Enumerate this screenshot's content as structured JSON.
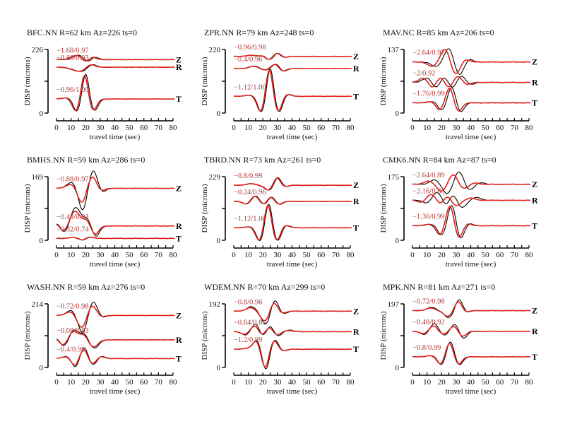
{
  "chart_data": {
    "type": "line",
    "layout": "3x3 grid",
    "series_colors": {
      "data": "#000000",
      "synthetic": "#e0201b"
    },
    "annotation_color": "#b03a3a",
    "common": {
      "xlabel": "travel time (sec)",
      "ylabel": "DISP (microns)",
      "xlim": [
        0,
        80
      ],
      "xticks": [
        0,
        10,
        20,
        30,
        40,
        50,
        60,
        70,
        80
      ],
      "components": [
        "Z",
        "R",
        "T"
      ]
    },
    "panels": [
      {
        "title": "BFC.NN R=62 km Az=226 ts=0",
        "ymax": 226,
        "traces": [
          {
            "comp": "Z",
            "offset": 190,
            "annotation": "−1.68/0.97",
            "wavelets": [
              [
                16,
                18,
                4
              ],
              [
                21,
                -14,
                3
              ],
              [
                26,
                10,
                2.5
              ]
            ],
            "shift": 1.5
          },
          {
            "comp": "R",
            "offset": 163,
            "annotation": "−0.88/0.93",
            "wavelets": [
              [
                17,
                -16,
                5
              ],
              [
                24,
                14,
                3
              ]
            ],
            "shift": 1.0
          },
          {
            "comp": "T",
            "offset": 50,
            "annotation": "−0.96/1.00",
            "wavelets": [
              [
                8,
                5,
                3
              ],
              [
                14,
                -45,
                2.5
              ],
              [
                20,
                92,
                2.2
              ],
              [
                26,
                -42,
                2.5
              ]
            ],
            "shift": 0.8
          }
        ]
      },
      {
        "title": "ZPR.NN R=79 km Az=248 ts=0",
        "ymax": 220,
        "traces": [
          {
            "comp": "Z",
            "offset": 196,
            "annotation": "−0.96/0.98",
            "wavelets": [
              [
                12,
                4,
                3
              ],
              [
                20,
                3,
                2
              ],
              [
                25,
                -12,
                2.5
              ],
              [
                30,
                12,
                2.5
              ],
              [
                35,
                -4,
                2
              ]
            ],
            "shift": 0.6
          },
          {
            "comp": "R",
            "offset": 154,
            "annotation": "−0.4/0.96",
            "wavelets": [
              [
                14,
                8,
                3
              ],
              [
                22,
                -5,
                2.5
              ],
              [
                29,
                16,
                2.5
              ],
              [
                34,
                -10,
                2.5
              ]
            ],
            "shift": 0.6
          },
          {
            "comp": "T",
            "offset": 58,
            "annotation": "−1.12/1.00",
            "wavelets": [
              [
                11,
                4,
                3
              ],
              [
                19,
                -55,
                2.5
              ],
              [
                25,
                100,
                2.2
              ],
              [
                31,
                -55,
                2.5
              ],
              [
                37,
                8,
                2.5
              ]
            ],
            "shift": 0.6
          }
        ]
      },
      {
        "title": "MAV.NC R=85 km Az=206 ts=0",
        "ymax": 137,
        "traces": [
          {
            "comp": "Z",
            "offset": 110,
            "annotation": "−2.64/0.97",
            "wavelets": [
              [
                16,
                -10,
                3
              ],
              [
                25,
                30,
                3
              ],
              [
                32,
                -28,
                3
              ],
              [
                39,
                6,
                2.5
              ]
            ],
            "shift": 2.5
          },
          {
            "comp": "R",
            "offset": 66,
            "annotation": "−2/0.92",
            "wavelets": [
              [
                10,
                10,
                3
              ],
              [
                16,
                -12,
                2.5
              ],
              [
                22,
                12,
                2.5
              ],
              [
                28,
                -14,
                3
              ],
              [
                33,
                16,
                3
              ],
              [
                40,
                -5,
                2.5
              ]
            ],
            "shift": 2.5
          },
          {
            "comp": "T",
            "offset": 22,
            "annotation": "−1.76/0.99",
            "wavelets": [
              [
                14,
                3,
                3
              ],
              [
                20,
                -16,
                2.5
              ],
              [
                27,
                34,
                2.5
              ],
              [
                33,
                -20,
                2.5
              ]
            ],
            "shift": 1.5
          }
        ]
      },
      {
        "title": "BMHS.NN R=59 km Az=286 ts=0",
        "ymax": 169,
        "traces": [
          {
            "comp": "Z",
            "offset": 138,
            "annotation": "−0.88/0.97",
            "wavelets": [
              [
                11,
                18,
                3.5
              ],
              [
                18,
                -62,
                3
              ],
              [
                25,
                50,
                3
              ],
              [
                31,
                -12,
                2.5
              ]
            ],
            "shift": 0.6,
            "syn_scale": 0.65
          },
          {
            "comp": "R",
            "offset": 38,
            "annotation": "−0.48/0.93",
            "wavelets": [
              [
                1,
                8,
                2
              ],
              [
                6,
                -20,
                3
              ],
              [
                13,
                50,
                3.5
              ],
              [
                21,
                18,
                2.5
              ],
              [
                27,
                -28,
                2.5
              ]
            ],
            "shift": 0.5,
            "syn_scale": 0.8
          },
          {
            "comp": "T",
            "offset": 5,
            "annotation": "−0.32/0.74",
            "wavelets": [
              [
                12,
                3,
                3
              ],
              [
                18,
                -5,
                2.5
              ],
              [
                23,
                4,
                2.5
              ]
            ],
            "shift": 0.5
          }
        ]
      },
      {
        "title": "TBRD.NN R=73 km Az=261 ts=0",
        "ymax": 229,
        "traces": [
          {
            "comp": "Z",
            "offset": 198,
            "annotation": "−0.8/0.99",
            "wavelets": [
              [
                12,
                6,
                3
              ],
              [
                25,
                -20,
                3
              ],
              [
                30,
                32,
                2.5
              ],
              [
                35,
                -6,
                2.5
              ]
            ],
            "shift": 0.6
          },
          {
            "comp": "R",
            "offset": 140,
            "annotation": "−0.24/0.96",
            "wavelets": [
              [
                9,
                -10,
                2.5
              ],
              [
                15,
                20,
                2.5
              ],
              [
                21,
                -12,
                2.5
              ],
              [
                26,
                18,
                2.5
              ],
              [
                31,
                -12,
                2.5
              ]
            ],
            "shift": 0.5
          },
          {
            "comp": "T",
            "offset": 45,
            "annotation": "−1.12/1.00",
            "wavelets": [
              [
                11,
                4,
                3
              ],
              [
                18,
                -48,
                2.5
              ],
              [
                24,
                90,
                2.2
              ],
              [
                30,
                -48,
                2.5
              ],
              [
                36,
                10,
                2.5
              ]
            ],
            "shift": 0.6
          }
        ]
      },
      {
        "title": "CMK6.NN R=84 km Az=87 ts=0",
        "ymax": 175,
        "traces": [
          {
            "comp": "Z",
            "offset": 154,
            "annotation": "−2.64/0.89",
            "wavelets": [
              [
                15,
                12,
                3
              ],
              [
                24,
                -26,
                3
              ],
              [
                32,
                36,
                3
              ],
              [
                39,
                -16,
                3
              ],
              [
                47,
                5,
                2.5
              ]
            ],
            "shift": 4.0,
            "syn_scale": 0.75
          },
          {
            "comp": "R",
            "offset": 110,
            "annotation": "−2.16/0.83",
            "wavelets": [
              [
                10,
                -8,
                2.5
              ],
              [
                17,
                22,
                3
              ],
              [
                23,
                -14,
                2.5
              ],
              [
                28,
                16,
                2.5
              ],
              [
                34,
                -20,
                3
              ],
              [
                44,
                8,
                3
              ]
            ],
            "shift": 4.0,
            "syn_scale": 0.75
          },
          {
            "comp": "T",
            "offset": 40,
            "annotation": "−1.36/0.99",
            "wavelets": [
              [
                12,
                4,
                3
              ],
              [
                20,
                -26,
                2.5
              ],
              [
                27,
                58,
                2.5
              ],
              [
                33,
                -36,
                2.5
              ],
              [
                39,
                6,
                2.5
              ]
            ],
            "shift": 1.2
          }
        ]
      },
      {
        "title": "WASH.NN R=59 km Az=276 ts=0",
        "ymax": 214,
        "traces": [
          {
            "comp": "Z",
            "offset": 175,
            "annotation": "−0.72/0.98",
            "wavelets": [
              [
                10,
                18,
                3
              ],
              [
                18,
                -60,
                3
              ],
              [
                25,
                48,
                3
              ],
              [
                31,
                -8,
                2.5
              ]
            ],
            "shift": 0.6,
            "syn_scale": 0.7
          },
          {
            "comp": "R",
            "offset": 93,
            "annotation": "−0.08/0.83",
            "wavelets": [
              [
                1,
                8,
                2
              ],
              [
                5,
                -22,
                3
              ],
              [
                12,
                34,
                3
              ],
              [
                19,
                20,
                2.5
              ],
              [
                26,
                -28,
                3
              ]
            ],
            "shift": 0.5,
            "syn_scale": 0.85
          },
          {
            "comp": "T",
            "offset": 30,
            "annotation": "−0.4/0.99",
            "wavelets": [
              [
                7,
                8,
                3
              ],
              [
                13,
                -30,
                2.5
              ],
              [
                19,
                38,
                2.5
              ],
              [
                25,
                -22,
                2.5
              ],
              [
                31,
                8,
                2.5
              ]
            ],
            "shift": 0.4,
            "syn_scale": 0.8
          }
        ]
      },
      {
        "title": "WDEM.NN R=70 km Az=299 ts=0",
        "ymax": 192,
        "traces": [
          {
            "comp": "Z",
            "offset": 170,
            "annotation": "−0.8/0.96",
            "wavelets": [
              [
                12,
                14,
                3
              ],
              [
                22,
                -40,
                3
              ],
              [
                28,
                36,
                2.5
              ],
              [
                34,
                -8,
                2.5
              ]
            ],
            "shift": 0.6,
            "syn_scale": 0.75
          },
          {
            "comp": "R",
            "offset": 108,
            "annotation": "−0.64/0.89",
            "wavelets": [
              [
                8,
                -10,
                2.5
              ],
              [
                15,
                24,
                2.5
              ],
              [
                20,
                -14,
                2.5
              ],
              [
                25,
                18,
                2.5
              ],
              [
                30,
                -14,
                2.5
              ],
              [
                38,
                5,
                2.5
              ]
            ],
            "shift": 0.6,
            "syn_scale": 0.75
          },
          {
            "comp": "T",
            "offset": 55,
            "annotation": "−1.2/0.99",
            "wavelets": [
              [
                10,
                3,
                3
              ],
              [
                16,
                28,
                2.5
              ],
              [
                22,
                -62,
                2.5
              ],
              [
                28,
                30,
                2.5
              ],
              [
                34,
                -5,
                2.5
              ]
            ],
            "shift": 0.5,
            "syn_scale": 0.9
          }
        ]
      },
      {
        "title": "MPK.NN R=81 km Az=271 ts=0",
        "ymax": 197,
        "traces": [
          {
            "comp": "Z",
            "offset": 176,
            "annotation": "−0.72/0.98",
            "wavelets": [
              [
                13,
                10,
                3
              ],
              [
                25,
                -22,
                3
              ],
              [
                32,
                36,
                2.5
              ],
              [
                37,
                -6,
                2.5
              ]
            ],
            "shift": 0.6,
            "syn_scale": 0.8
          },
          {
            "comp": "R",
            "offset": 112,
            "annotation": "−0.48/0.92",
            "wavelets": [
              [
                8,
                -10,
                2.5
              ],
              [
                15,
                24,
                2.5
              ],
              [
                22,
                -12,
                2.5
              ],
              [
                29,
                22,
                2.5
              ],
              [
                35,
                -22,
                2.5
              ]
            ],
            "shift": 0.6,
            "syn_scale": 0.7
          },
          {
            "comp": "T",
            "offset": 33,
            "annotation": "−0.8/0.99",
            "wavelets": [
              [
                13,
                4,
                3
              ],
              [
                20,
                -26,
                2.5
              ],
              [
                26,
                48,
                2.5
              ],
              [
                32,
                -26,
                2.5
              ]
            ],
            "shift": 0.6,
            "syn_scale": 0.9
          }
        ]
      }
    ]
  }
}
